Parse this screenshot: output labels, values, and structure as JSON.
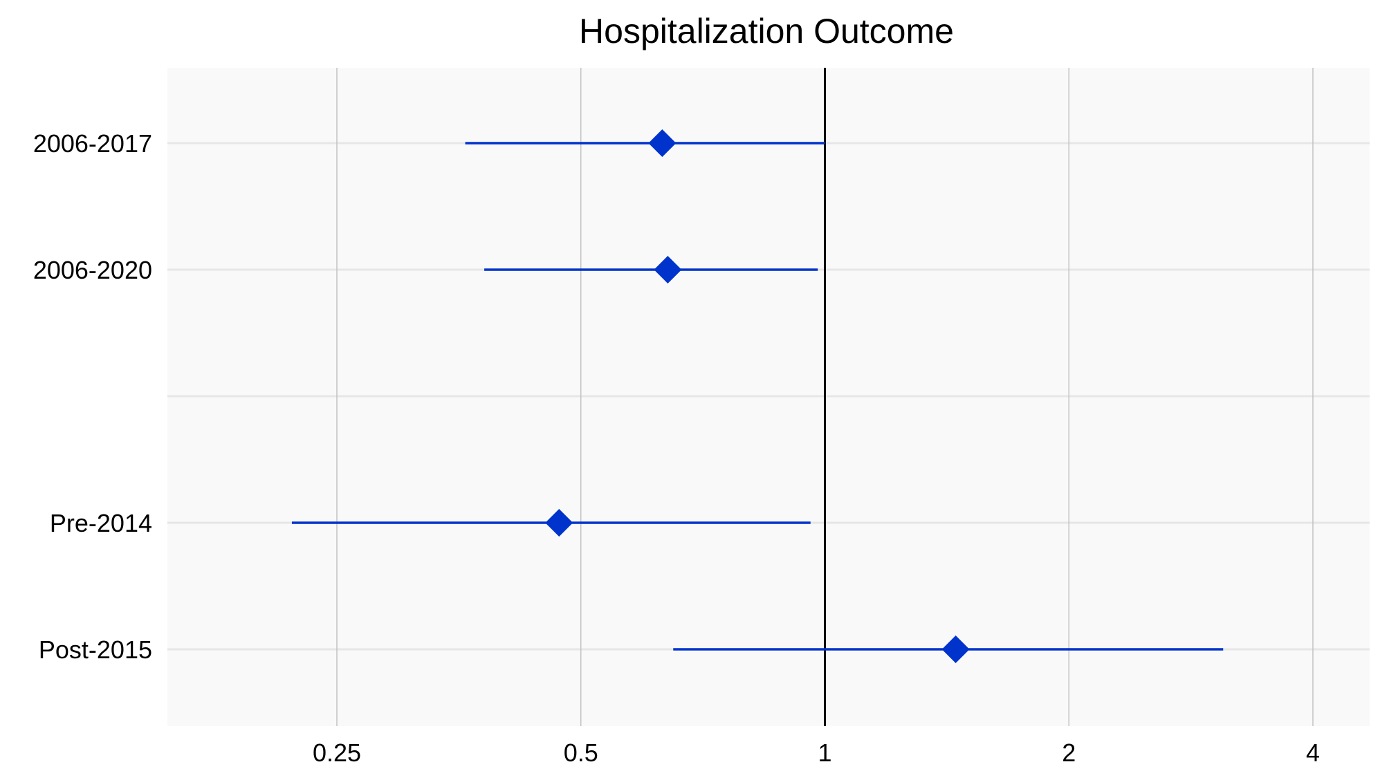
{
  "chart_data": {
    "type": "scatter",
    "subtype": "forest-plot",
    "title": "Hospitalization Outcome",
    "xlabel": "",
    "ylabel": "",
    "x_scale": "log2",
    "xlim": [
      0.155,
      4.7
    ],
    "x_ticks": [
      0.25,
      0.5,
      1,
      2,
      4
    ],
    "x_tick_labels": [
      "0.25",
      "0.5",
      "1",
      "2",
      "4"
    ],
    "reference_line": 1,
    "grid": true,
    "rows": [
      {
        "label": "2006-2017",
        "estimate": 0.63,
        "lower": 0.36,
        "upper": 1.0
      },
      {
        "label": "2006-2020",
        "estimate": 0.64,
        "lower": 0.38,
        "upper": 0.98
      },
      {
        "label": "",
        "separator": true
      },
      {
        "label": "Pre-2014",
        "estimate": 0.47,
        "lower": 0.22,
        "upper": 0.96
      },
      {
        "label": "Post-2015",
        "estimate": 1.45,
        "lower": 0.65,
        "upper": 3.1
      }
    ],
    "colors": {
      "point": "#0033cc",
      "interval": "#0033cc",
      "reference_line": "#000000",
      "panel_background": "#f9f9f9",
      "gridline_vertical": "#c2c2c2",
      "gridline_horizontal": "#e6e6e6"
    }
  }
}
